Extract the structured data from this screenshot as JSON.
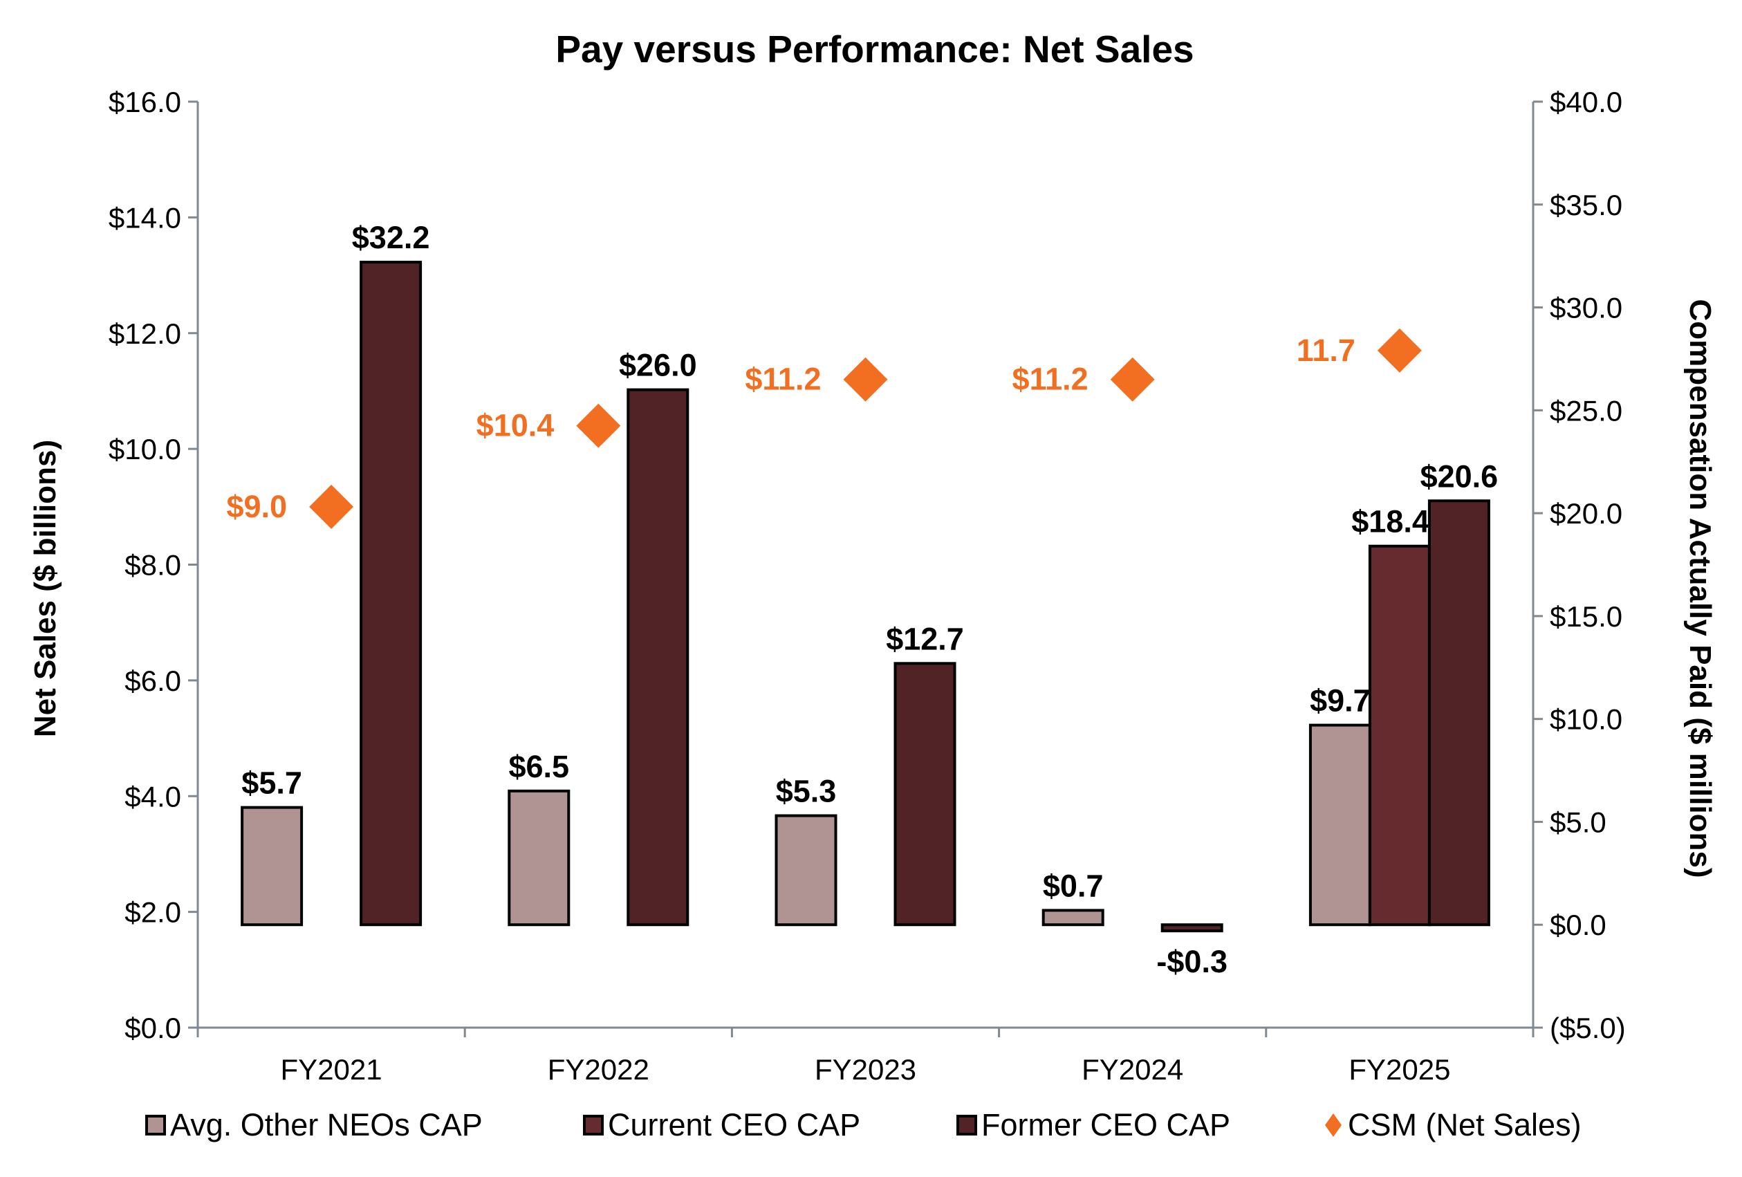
{
  "chart_data": {
    "type": "bar",
    "title": "Pay versus Performance: Net Sales",
    "categories": [
      "FY2021",
      "FY2022",
      "FY2023",
      "FY2024",
      "FY2025"
    ],
    "y_left": {
      "label": "Net Sales ($ billions)",
      "range": [
        0,
        16
      ],
      "ticks": [
        "$0.0",
        "$2.0",
        "$4.0",
        "$6.0",
        "$8.0",
        "$10.0",
        "$12.0",
        "$14.0",
        "$16.0"
      ]
    },
    "y_right": {
      "label": "Compensation Actually Paid ($ millions)",
      "range": [
        -5,
        40
      ],
      "ticks": [
        "($5.0)",
        "$0.0",
        "$5.0",
        "$10.0",
        "$15.0",
        "$20.0",
        "$25.0",
        "$30.0",
        "$35.0",
        "$40.0"
      ]
    },
    "series": [
      {
        "name": "Avg. Other NEOs CAP",
        "type": "bar",
        "axis": "right",
        "color": "#b09494",
        "values": [
          5.7,
          6.5,
          5.3,
          0.7,
          9.7
        ],
        "labels": [
          "$5.7",
          "$6.5",
          "$5.3",
          "$0.7",
          "$9.7"
        ]
      },
      {
        "name": "Current CEO CAP",
        "type": "bar",
        "axis": "right",
        "color": "#662b2f",
        "values": [
          null,
          null,
          null,
          null,
          18.4
        ],
        "labels": [
          null,
          null,
          null,
          null,
          "$18.4"
        ]
      },
      {
        "name": "Former CEO CAP",
        "type": "bar",
        "axis": "right",
        "color": "#522326",
        "values": [
          32.2,
          26.0,
          12.7,
          -0.3,
          20.6
        ],
        "labels": [
          "$32.2",
          "$26.0",
          "$12.7",
          "-$0.3",
          "$20.6"
        ]
      },
      {
        "name": "CSM (Net Sales)",
        "type": "scatter",
        "axis": "left",
        "marker": "diamond",
        "color": "#f26f21",
        "values": [
          9.0,
          10.4,
          11.2,
          11.2,
          11.7
        ],
        "labels": [
          "$9.0",
          "$10.4",
          "$11.2",
          "$11.2",
          "11.7"
        ]
      }
    ],
    "legend": "bottom",
    "grid": false
  }
}
